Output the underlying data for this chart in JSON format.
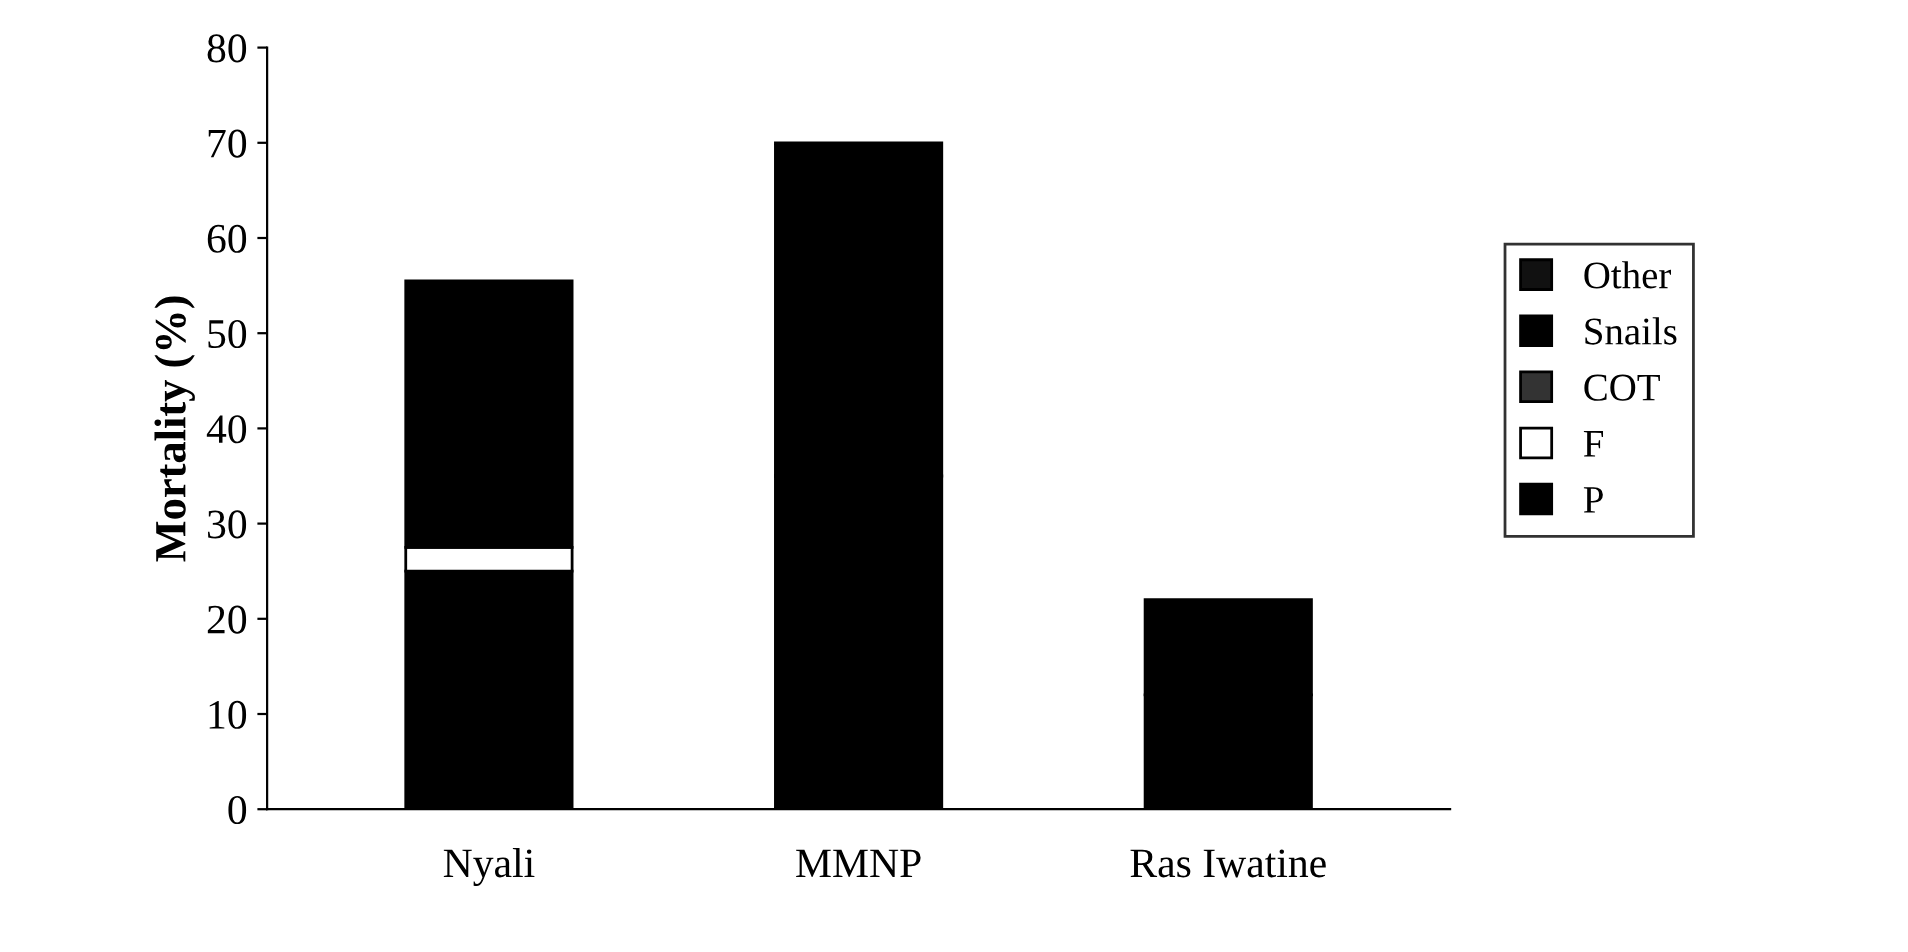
{
  "chart_data": {
    "type": "bar",
    "stacked": true,
    "ylabel": "Mortality (%)",
    "categories": [
      "Nyali",
      "MMNP",
      "Ras Iwatine"
    ],
    "series": [
      {
        "name": "P",
        "color": "#000000",
        "values": [
          25,
          35,
          12
        ]
      },
      {
        "name": "F",
        "color": "#ffffff",
        "values": [
          2.5,
          0,
          0
        ]
      },
      {
        "name": "COT",
        "color": "#333333",
        "values": [
          0,
          0,
          0
        ]
      },
      {
        "name": "Snails",
        "color": "#000000",
        "values": [
          28,
          35,
          10
        ]
      },
      {
        "name": "Other",
        "color": "#111111",
        "values": [
          0,
          0,
          0
        ]
      }
    ],
    "ylim": [
      0,
      80
    ],
    "yticks": [
      0,
      10,
      20,
      30,
      40,
      50,
      60,
      70,
      80
    ],
    "grid": false,
    "legend": "right"
  }
}
